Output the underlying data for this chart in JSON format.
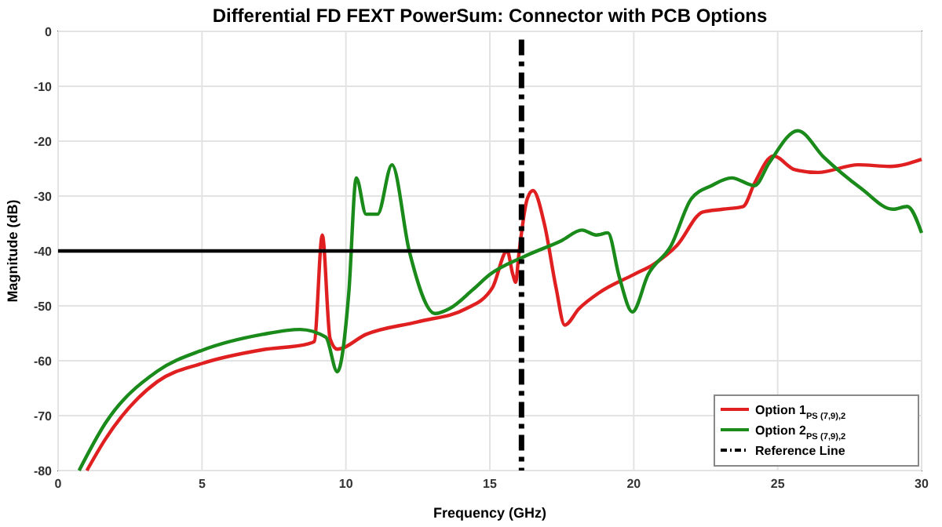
{
  "chart_data": {
    "type": "line",
    "title": "Differential FD FEXT PowerSum: Connector with PCB Options",
    "xlabel": "Frequency (GHz)",
    "ylabel": "Magnitude (dB)",
    "xlim": [
      0,
      30
    ],
    "xticks": [
      0,
      5,
      10,
      15,
      20,
      25,
      30
    ],
    "ylim": [
      -80,
      0
    ],
    "yticks": [
      -80,
      -70,
      -60,
      -50,
      -40,
      -30,
      -20,
      -10,
      0
    ],
    "grid": true,
    "legend": "bottom right",
    "series": [
      {
        "name": "Option 1$_{PS (7,9),2}$",
        "color": "#e02020",
        "x": [
          1.0,
          1.64,
          3.45,
          5,
          7.1,
          8.7,
          8.9,
          9.18,
          9.45,
          9.7,
          10.7,
          12.5,
          14.18,
          15.09,
          15.6,
          15.8,
          15.9,
          16.0,
          16.3,
          16.5,
          16.9,
          17.3,
          17.6,
          18.1,
          18.8,
          20,
          20.7,
          21.5,
          22.4,
          23.1,
          23.8,
          24.2,
          24.85,
          25.6,
          26.4,
          27.8,
          28.9,
          30
        ],
        "values": [
          -80,
          -74.3,
          -63.8,
          -60.5,
          -58,
          -56.9,
          -56.5,
          -37.1,
          -56,
          -57.9,
          -55.2,
          -52.9,
          -50.5,
          -46.7,
          -40,
          -44.3,
          -45.7,
          -41,
          -30.5,
          -29,
          -35.2,
          -46.7,
          -53.5,
          -50.5,
          -47.6,
          -44.3,
          -42.4,
          -39,
          -32.9,
          -32.4,
          -31.9,
          -27.6,
          -22.7,
          -25.2,
          -25.7,
          -24.3,
          -24.6,
          -23.3
        ]
      },
      {
        "name": "Option 2$_{PS (7,9),2}$",
        "color": "#1a8a1a",
        "x": [
          0.73,
          1.64,
          3.45,
          5,
          7.1,
          8.4,
          9.3,
          9.7,
          10.1,
          10.36,
          10.7,
          11.1,
          11.6,
          12.2,
          13.1,
          13.6,
          14.4,
          15,
          16.2,
          17.5,
          18.2,
          18.7,
          19.1,
          19.5,
          19.95,
          20.5,
          21.3,
          22,
          22.7,
          23.4,
          24.2,
          24.7,
          25.7,
          26.6,
          27.9,
          29,
          29.5,
          30
        ],
        "values": [
          -80,
          -71.4,
          -61.9,
          -58.1,
          -55.2,
          -54.3,
          -55.7,
          -62,
          -47.6,
          -26.7,
          -33.3,
          -33.3,
          -24.3,
          -40,
          -51.4,
          -50.5,
          -47.1,
          -44.3,
          -41,
          -38.1,
          -36.2,
          -37.1,
          -36.7,
          -44.8,
          -51.1,
          -44.3,
          -39,
          -30.5,
          -28.1,
          -26.7,
          -28.1,
          -24,
          -18.1,
          -22.9,
          -28.6,
          -32.4,
          -31.9,
          -36.7
        ]
      },
      {
        "color": "#000000",
        "x": [
          0,
          16.1
        ],
        "values": [
          -40,
          -40
        ]
      },
      {
        "name": "Reference Line",
        "color": "#000000",
        "line_style": "dashed",
        "x": [
          16.1,
          16.1
        ],
        "values": [
          -1.5,
          -80
        ]
      }
    ]
  }
}
